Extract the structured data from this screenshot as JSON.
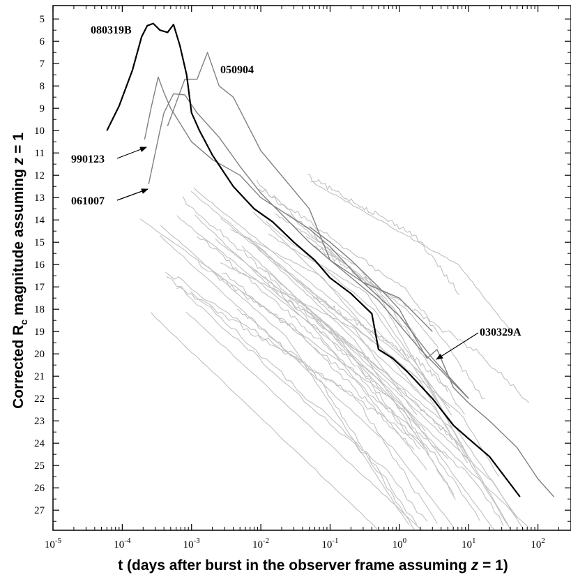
{
  "chart_data": {
    "type": "line",
    "title": "",
    "xlabel": "t (days after burst in the observer frame assuming z = 1)",
    "ylabel": "Corrected R_c magnitude assuming z = 1",
    "x_scale": "log",
    "xlim": [
      1e-05,
      300
    ],
    "ylim": [
      27.9,
      4.4
    ],
    "y_inverted": true,
    "x_ticks": [
      {
        "base": "10",
        "exp": "-5"
      },
      {
        "base": "10",
        "exp": "-4"
      },
      {
        "base": "10",
        "exp": "-3"
      },
      {
        "base": "10",
        "exp": "-2"
      },
      {
        "base": "10",
        "exp": "-1"
      },
      {
        "base": "10",
        "exp": "0"
      },
      {
        "base": "10",
        "exp": "1"
      },
      {
        "base": "10",
        "exp": "2"
      }
    ],
    "y_ticks": [
      5,
      6,
      7,
      8,
      9,
      10,
      11,
      12,
      13,
      14,
      15,
      16,
      17,
      18,
      19,
      20,
      21,
      22,
      23,
      24,
      25,
      26,
      27
    ],
    "grid": false,
    "legend": "none",
    "colors": {
      "highlight": "#000000",
      "secondary": "#808080",
      "background_curves": "#c0c0c0"
    },
    "series": [
      {
        "name": "080319B",
        "color": "#000000",
        "width": 2.2,
        "x": [
          6e-05,
          9e-05,
          0.00014,
          0.00019,
          0.00023,
          0.00028,
          0.00035,
          0.00045,
          0.00055,
          0.00068,
          0.00085,
          0.001,
          0.0013,
          0.002,
          0.004,
          0.008,
          0.015,
          0.03,
          0.06,
          0.1,
          0.2,
          0.4,
          0.5,
          0.8,
          1.3,
          3,
          6,
          10,
          20,
          55
        ],
        "y": [
          10,
          8.9,
          7.3,
          5.8,
          5.3,
          5.2,
          5.5,
          5.6,
          5.25,
          6.2,
          7.5,
          9.2,
          10.0,
          11.1,
          12.5,
          13.5,
          14.1,
          15.0,
          15.8,
          16.6,
          17.3,
          18.2,
          19.8,
          20.2,
          20.8,
          22.0,
          23.2,
          23.8,
          24.6,
          26.4
        ]
      },
      {
        "name": "050904",
        "color": "#808080",
        "width": 1.4,
        "x": [
          0.00045,
          0.0008,
          0.0012,
          0.0017,
          0.0025,
          0.004,
          0.01,
          0.05,
          0.1,
          0.3,
          1,
          3
        ],
        "y": [
          9.8,
          7.7,
          7.7,
          6.5,
          8.0,
          8.5,
          10.9,
          13.5,
          15.8,
          16.8,
          17.5,
          19.0
        ]
      },
      {
        "name": "990123",
        "color": "#808080",
        "width": 1.4,
        "x": [
          0.00021,
          0.00026,
          0.00033,
          0.0004,
          0.0005,
          0.001,
          0.002,
          0.005,
          0.01,
          0.05,
          0.1,
          0.3,
          1,
          3,
          10
        ],
        "y": [
          10.4,
          9.0,
          7.6,
          8.3,
          9.0,
          10.5,
          11.3,
          12.0,
          13.0,
          14.4,
          15.2,
          16.8,
          18.3,
          20.2,
          22.0
        ]
      },
      {
        "name": "061007",
        "color": "#808080",
        "width": 1.4,
        "x": [
          0.00024,
          0.00035,
          0.0004,
          0.00055,
          0.0008,
          0.0012,
          0.0025,
          0.005,
          0.01,
          0.05,
          0.1,
          0.5,
          2,
          10
        ],
        "y": [
          12.4,
          10.0,
          9.2,
          8.35,
          8.4,
          9.2,
          10.3,
          11.6,
          12.8,
          15.0,
          15.8,
          17.6,
          19.8,
          22.0
        ]
      },
      {
        "name": "030329A",
        "color": "#808080",
        "width": 1.4,
        "x": [
          0.05,
          0.1,
          0.2,
          0.5,
          1.0,
          1.5,
          2.5,
          3.5,
          6,
          10,
          20,
          50,
          100,
          170
        ],
        "y": [
          14.3,
          15.0,
          15.8,
          17.0,
          18.0,
          19.0,
          20.2,
          19.8,
          21.5,
          22.2,
          23.0,
          24.2,
          25.6,
          26.4
        ]
      }
    ],
    "annotations": [
      {
        "text": "080319B",
        "target": "080319B"
      },
      {
        "text": "050904",
        "target": "050904"
      },
      {
        "text": "990123",
        "target": "990123",
        "arrow": true
      },
      {
        "text": "061007",
        "target": "061007",
        "arrow": true
      },
      {
        "text": "030329A",
        "target": "030329A",
        "arrow": true
      }
    ]
  }
}
